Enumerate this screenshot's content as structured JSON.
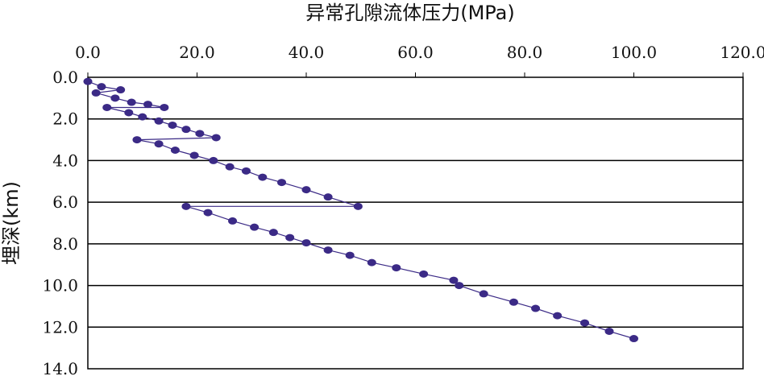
{
  "chart_data": {
    "type": "line",
    "title": "",
    "xlabel": "异常孔隙流体压力(MPa)",
    "ylabel": "埋深(km)",
    "x_axis_position": "top",
    "y_axis_inverted": true,
    "xlim": [
      0,
      120
    ],
    "ylim": [
      0,
      14
    ],
    "xticks": [
      "0.0",
      "20.0",
      "40.0",
      "60.0",
      "80.0",
      "100.0",
      "120.0"
    ],
    "yticks": [
      "0.0",
      "2.0",
      "4.0",
      "6.0",
      "8.0",
      "10.0",
      "12.0",
      "14.0"
    ],
    "horizontal_grid": true,
    "vertical_grid": false,
    "series_color": "#3b2a86",
    "series": [
      {
        "points": [
          [
            0,
            0.2
          ],
          [
            2.5,
            0.45
          ],
          [
            6,
            0.6
          ],
          [
            1.5,
            0.75
          ],
          [
            5,
            1.0
          ],
          [
            8,
            1.2
          ],
          [
            11,
            1.3
          ],
          [
            14,
            1.45
          ],
          [
            3.5,
            1.45
          ],
          [
            7.5,
            1.7
          ],
          [
            10,
            1.9
          ],
          [
            13,
            2.1
          ],
          [
            15.5,
            2.3
          ],
          [
            18,
            2.5
          ],
          [
            20.5,
            2.7
          ],
          [
            23.5,
            2.9
          ],
          [
            9,
            3.0
          ],
          [
            13,
            3.2
          ],
          [
            16,
            3.5
          ],
          [
            19.5,
            3.75
          ],
          [
            23,
            4.0
          ],
          [
            26,
            4.3
          ],
          [
            29,
            4.5
          ],
          [
            32,
            4.8
          ],
          [
            35.5,
            5.05
          ],
          [
            40,
            5.4
          ],
          [
            44,
            5.75
          ],
          [
            49.5,
            6.2
          ],
          [
            18,
            6.2
          ],
          [
            22,
            6.5
          ],
          [
            26.5,
            6.9
          ],
          [
            30.5,
            7.2
          ],
          [
            34,
            7.45
          ],
          [
            37,
            7.7
          ],
          [
            40,
            7.95
          ],
          [
            44,
            8.3
          ],
          [
            48,
            8.55
          ],
          [
            52,
            8.9
          ],
          [
            56.5,
            9.15
          ],
          [
            61.5,
            9.45
          ],
          [
            67,
            9.75
          ],
          [
            68,
            10.0
          ],
          [
            72.5,
            10.4
          ],
          [
            78,
            10.8
          ],
          [
            82,
            11.1
          ],
          [
            86,
            11.45
          ],
          [
            91,
            11.8
          ],
          [
            95.5,
            12.2
          ],
          [
            100,
            12.55
          ]
        ]
      }
    ]
  }
}
